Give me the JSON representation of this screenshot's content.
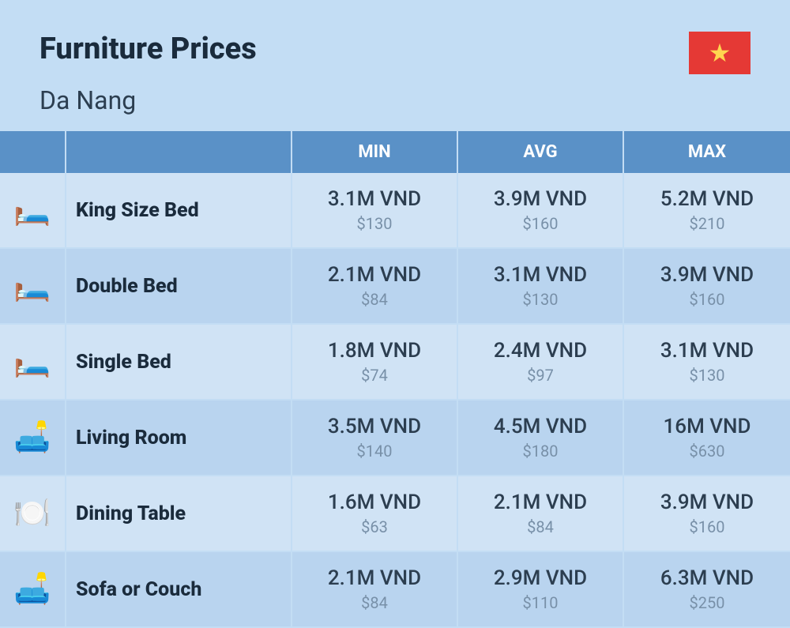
{
  "header": {
    "title": "Furniture Prices",
    "subtitle": "Da Nang"
  },
  "flag": {
    "bg_color": "#e53935",
    "star_color": "#ffd54f",
    "star_glyph": "★"
  },
  "table": {
    "columns": [
      "MIN",
      "AVG",
      "MAX"
    ],
    "header_bg": "#5a91c7",
    "header_text_color": "#ffffff",
    "row_bg_even": "#d0e3f5",
    "row_bg_odd": "#b9d4ef",
    "border_color": "#c3ddf4",
    "col_widths": {
      "icon": 84,
      "value": 210
    },
    "rows": [
      {
        "icon": "🛏️",
        "name": "King Size Bed",
        "min": {
          "vnd": "3.1M VND",
          "usd": "$130"
        },
        "avg": {
          "vnd": "3.9M VND",
          "usd": "$160"
        },
        "max": {
          "vnd": "5.2M VND",
          "usd": "$210"
        }
      },
      {
        "icon": "🛏️",
        "name": "Double Bed",
        "min": {
          "vnd": "2.1M VND",
          "usd": "$84"
        },
        "avg": {
          "vnd": "3.1M VND",
          "usd": "$130"
        },
        "max": {
          "vnd": "3.9M VND",
          "usd": "$160"
        }
      },
      {
        "icon": "🛏️",
        "name": "Single Bed",
        "min": {
          "vnd": "1.8M VND",
          "usd": "$74"
        },
        "avg": {
          "vnd": "2.4M VND",
          "usd": "$97"
        },
        "max": {
          "vnd": "3.1M VND",
          "usd": "$130"
        }
      },
      {
        "icon": "🛋️",
        "name": "Living Room",
        "min": {
          "vnd": "3.5M VND",
          "usd": "$140"
        },
        "avg": {
          "vnd": "4.5M VND",
          "usd": "$180"
        },
        "max": {
          "vnd": "16M VND",
          "usd": "$630"
        }
      },
      {
        "icon": "🍽️",
        "name": "Dining Table",
        "min": {
          "vnd": "1.6M VND",
          "usd": "$63"
        },
        "avg": {
          "vnd": "2.1M VND",
          "usd": "$84"
        },
        "max": {
          "vnd": "3.9M VND",
          "usd": "$160"
        }
      },
      {
        "icon": "🛋️",
        "name": "Sofa or Couch",
        "min": {
          "vnd": "2.1M VND",
          "usd": "$84"
        },
        "avg": {
          "vnd": "2.9M VND",
          "usd": "$110"
        },
        "max": {
          "vnd": "6.3M VND",
          "usd": "$250"
        }
      }
    ]
  },
  "typography": {
    "title_fontsize": 38,
    "subtitle_fontsize": 32,
    "header_fontsize": 22,
    "name_fontsize": 25,
    "price_main_fontsize": 26,
    "price_sub_fontsize": 20,
    "text_color": "#2c3e50",
    "sub_text_color": "#7890a8"
  },
  "background_color": "#c3ddf4"
}
